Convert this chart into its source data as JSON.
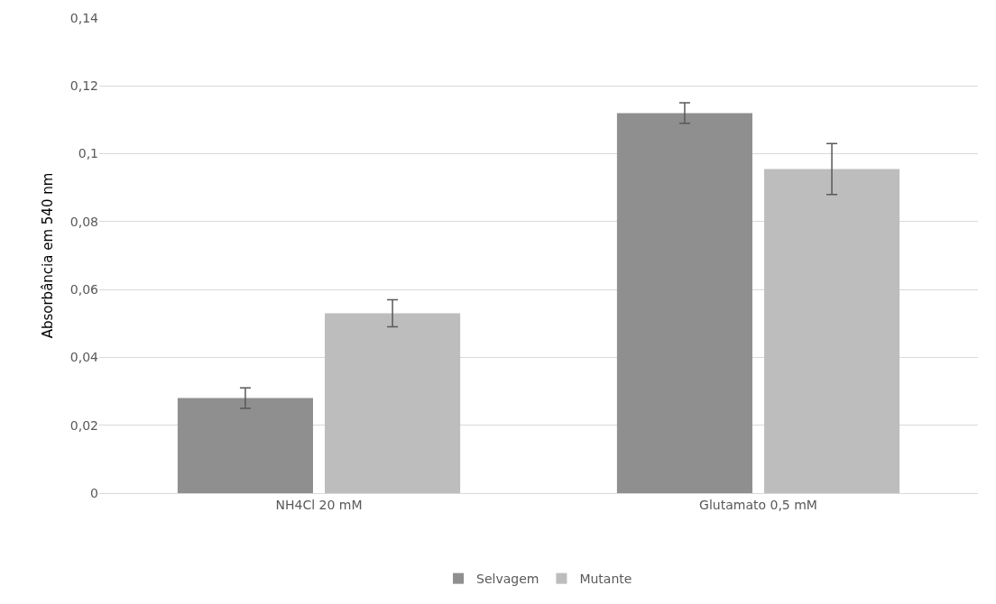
{
  "chart_data": {
    "type": "bar",
    "ylabel": "Absorbância em 540 nm",
    "categories": [
      "NH4Cl 20 mM",
      "Glutamato 0,5 mM"
    ],
    "series": [
      {
        "name": "Selvagem",
        "color": "#8f8f8f",
        "values": [
          0.028,
          0.112
        ],
        "errors": [
          0.003,
          0.003
        ]
      },
      {
        "name": "Mutante",
        "color": "#bdbdbd",
        "values": [
          0.053,
          0.0955
        ],
        "errors": [
          0.004,
          0.0075
        ]
      }
    ],
    "ylim": [
      0,
      0.14
    ],
    "yticks": [
      {
        "value": 0,
        "label": "0"
      },
      {
        "value": 0.02,
        "label": "0,02"
      },
      {
        "value": 0.04,
        "label": "0,04"
      },
      {
        "value": 0.06,
        "label": "0,06"
      },
      {
        "value": 0.08,
        "label": "0,08"
      },
      {
        "value": 0.1,
        "label": "0,1"
      },
      {
        "value": 0.12,
        "label": "0,12"
      },
      {
        "value": 0.14,
        "label": "0,14"
      }
    ],
    "grid": "y",
    "legend": "bottom"
  }
}
